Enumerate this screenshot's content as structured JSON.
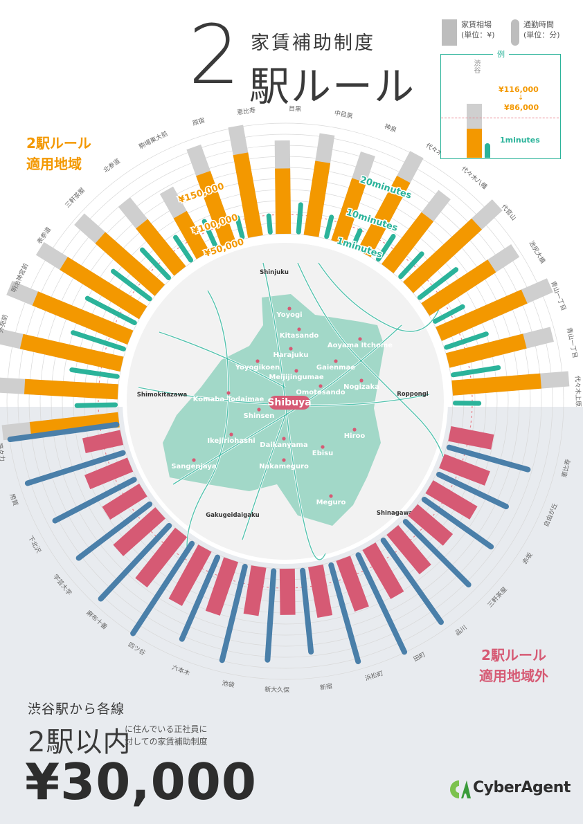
{
  "title": {
    "number": "2",
    "subtitle": "家賃補助制度",
    "main": "駅ルール"
  },
  "legend": {
    "rent_label": "家賃相場",
    "rent_unit": "(単位：¥)",
    "commute_label": "通勤時間",
    "commute_unit": "(単位：分)",
    "example_label": "例",
    "example_station": "渋谷",
    "example_before": "¥116,000",
    "example_arrow": "↓",
    "example_after": "¥86,000",
    "example_time": "1minutes"
  },
  "zones": {
    "in_line1": "2駅ルール",
    "in_line2": "適用地域",
    "out_line1": "2駅ルール",
    "out_line2": "適用地域外"
  },
  "bottom": {
    "line1": "渋谷駅から各線",
    "big": "2駅以内",
    "note1": "に住んでいる正社員に",
    "note2": "対しての家賃補助制度",
    "amount": "¥30,000"
  },
  "logo": {
    "text": "CyberAgent"
  },
  "colors": {
    "orange": "#f39800",
    "pink": "#d65a74",
    "teal": "#2bb39a",
    "blue": "#4a7fa9",
    "gray": "#cfcfcf",
    "map_green": "#8dd1bd",
    "grid": "#d8d8d8",
    "dashed": "#e8828c"
  },
  "chart_data": {
    "type": "radial-bar",
    "rent_scale_labels": [
      "¥50,000",
      "¥100,000",
      "¥150,000"
    ],
    "commute_scale_labels": [
      "1minutes",
      "10minutes",
      "20minutes"
    ],
    "stations": [
      {
        "name": "乃木坂",
        "zone": "in",
        "rent_before": 125000,
        "rent_after": 95000,
        "commute_min": 8
      },
      {
        "name": "広尾",
        "zone": "in",
        "rent_before": 130000,
        "rent_after": 100000,
        "commute_min": 10
      },
      {
        "name": "外苑前",
        "zone": "in",
        "rent_before": 140000,
        "rent_after": 110000,
        "commute_min": 12
      },
      {
        "name": "明治神宮前",
        "zone": "in",
        "rent_before": 140000,
        "rent_after": 110000,
        "commute_min": 12
      },
      {
        "name": "表参道",
        "zone": "in",
        "rent_before": 130000,
        "rent_after": 100000,
        "commute_min": 10
      },
      {
        "name": "三軒茶屋",
        "zone": "in",
        "rent_before": 115000,
        "rent_after": 85000,
        "commute_min": 8
      },
      {
        "name": "北参道",
        "zone": "in",
        "rent_before": 95000,
        "rent_after": 65000,
        "commute_min": 5
      },
      {
        "name": "駒場東大前",
        "zone": "in",
        "rent_before": 80000,
        "rent_after": 50000,
        "commute_min": 5
      },
      {
        "name": "原宿",
        "zone": "in",
        "rent_before": 110000,
        "rent_after": 80000,
        "commute_min": 3
      },
      {
        "name": "恵比寿",
        "zone": "in",
        "rent_before": 120000,
        "rent_after": 90000,
        "commute_min": 2
      },
      {
        "name": "目黒",
        "zone": "in",
        "rent_before": 100000,
        "rent_after": 70000,
        "commute_min": 5
      },
      {
        "name": "中目黒",
        "zone": "in",
        "rent_before": 110000,
        "rent_after": 80000,
        "commute_min": 3
      },
      {
        "name": "神泉",
        "zone": "in",
        "rent_before": 100000,
        "rent_after": 70000,
        "commute_min": 2
      },
      {
        "name": "代々木",
        "zone": "in",
        "rent_before": 120000,
        "rent_after": 90000,
        "commute_min": 5
      },
      {
        "name": "代々木八幡",
        "zone": "in",
        "rent_before": 100000,
        "rent_after": 70000,
        "commute_min": 6
      },
      {
        "name": "代官山",
        "zone": "in",
        "rent_before": 130000,
        "rent_after": 100000,
        "commute_min": 10
      },
      {
        "name": "池尻大橋",
        "zone": "in",
        "rent_before": 115000,
        "rent_after": 85000,
        "commute_min": 6
      },
      {
        "name": "青山一丁目",
        "zone": "in",
        "rent_before": 130000,
        "rent_after": 100000,
        "commute_min": 9
      },
      {
        "name": "青山一丁目",
        "zone": "in",
        "rent_before": 115000,
        "rent_after": 85000,
        "commute_min": 10
      },
      {
        "name": "代々木上原",
        "zone": "in",
        "rent_before": 125000,
        "rent_after": 95000,
        "commute_min": 4
      },
      {
        "name": "恵比寿",
        "zone": "out",
        "rent_before": 0,
        "rent_after": 85000,
        "commute_min": 20
      },
      {
        "name": "自由が丘",
        "zone": "out",
        "rent_before": 0,
        "rent_after": 95000,
        "commute_min": 18
      },
      {
        "name": "赤坂",
        "zone": "out",
        "rent_before": 0,
        "rent_after": 100000,
        "commute_min": 20
      },
      {
        "name": "三軒茶屋",
        "zone": "out",
        "rent_before": 0,
        "rent_after": 90000,
        "commute_min": 22
      },
      {
        "name": "品川",
        "zone": "out",
        "rent_before": 0,
        "rent_after": 100000,
        "commute_min": 25
      },
      {
        "name": "田町",
        "zone": "out",
        "rent_before": 0,
        "rent_after": 110000,
        "commute_min": 27
      },
      {
        "name": "浜松町",
        "zone": "out",
        "rent_before": 0,
        "rent_after": 105000,
        "commute_min": 25
      },
      {
        "name": "新宿",
        "zone": "out",
        "rent_before": 0,
        "rent_after": 100000,
        "commute_min": 20
      },
      {
        "name": "新大久保",
        "zone": "out",
        "rent_before": 0,
        "rent_after": 90000,
        "commute_min": 22
      },
      {
        "name": "池袋",
        "zone": "out",
        "rent_before": 0,
        "rent_after": 95000,
        "commute_min": 24
      },
      {
        "name": "六本木",
        "zone": "out",
        "rent_before": 0,
        "rent_after": 110000,
        "commute_min": 22
      },
      {
        "name": "四ツ谷",
        "zone": "out",
        "rent_before": 0,
        "rent_after": 120000,
        "commute_min": 27
      },
      {
        "name": "麻布十番",
        "zone": "out",
        "rent_before": 0,
        "rent_after": 125000,
        "commute_min": 25
      },
      {
        "name": "学芸大学",
        "zone": "out",
        "rent_before": 0,
        "rent_after": 110000,
        "commute_min": 22
      },
      {
        "name": "下北沢",
        "zone": "out",
        "rent_before": 0,
        "rent_after": 85000,
        "commute_min": 22
      },
      {
        "name": "用賀",
        "zone": "out",
        "rent_before": 0,
        "rent_after": 90000,
        "commute_min": 25
      },
      {
        "name": "等々力",
        "zone": "out",
        "rent_before": 0,
        "rent_after": 75000,
        "commute_min": 27
      }
    ],
    "map_stations": [
      {
        "name": "Shinjuku",
        "kind": "major"
      },
      {
        "name": "Yoyogi",
        "kind": "in"
      },
      {
        "name": "Kitasando",
        "kind": "in"
      },
      {
        "name": "Harajuku",
        "kind": "in"
      },
      {
        "name": "Aoyama Itchome",
        "kind": "in"
      },
      {
        "name": "Gaienmae",
        "kind": "in"
      },
      {
        "name": "Yoyogikoen",
        "kind": "in"
      },
      {
        "name": "Meijijingumae",
        "kind": "in"
      },
      {
        "name": "Nogizaka",
        "kind": "in"
      },
      {
        "name": "Omotesando",
        "kind": "in"
      },
      {
        "name": "Roppongi",
        "kind": "major"
      },
      {
        "name": "Shimokitazawa",
        "kind": "major"
      },
      {
        "name": "Komaba Todaimae",
        "kind": "in"
      },
      {
        "name": "Shibuya",
        "kind": "center"
      },
      {
        "name": "Shinsen",
        "kind": "in"
      },
      {
        "name": "Hiroo",
        "kind": "in"
      },
      {
        "name": "Ikejiriohashi",
        "kind": "in"
      },
      {
        "name": "Daikanyama",
        "kind": "in"
      },
      {
        "name": "Ebisu",
        "kind": "in"
      },
      {
        "name": "Sangenjaya",
        "kind": "in"
      },
      {
        "name": "Nakameguro",
        "kind": "in"
      },
      {
        "name": "Meguro",
        "kind": "in"
      },
      {
        "name": "Shinagawa",
        "kind": "major"
      },
      {
        "name": "Gakugeidaigaku",
        "kind": "major"
      }
    ]
  }
}
